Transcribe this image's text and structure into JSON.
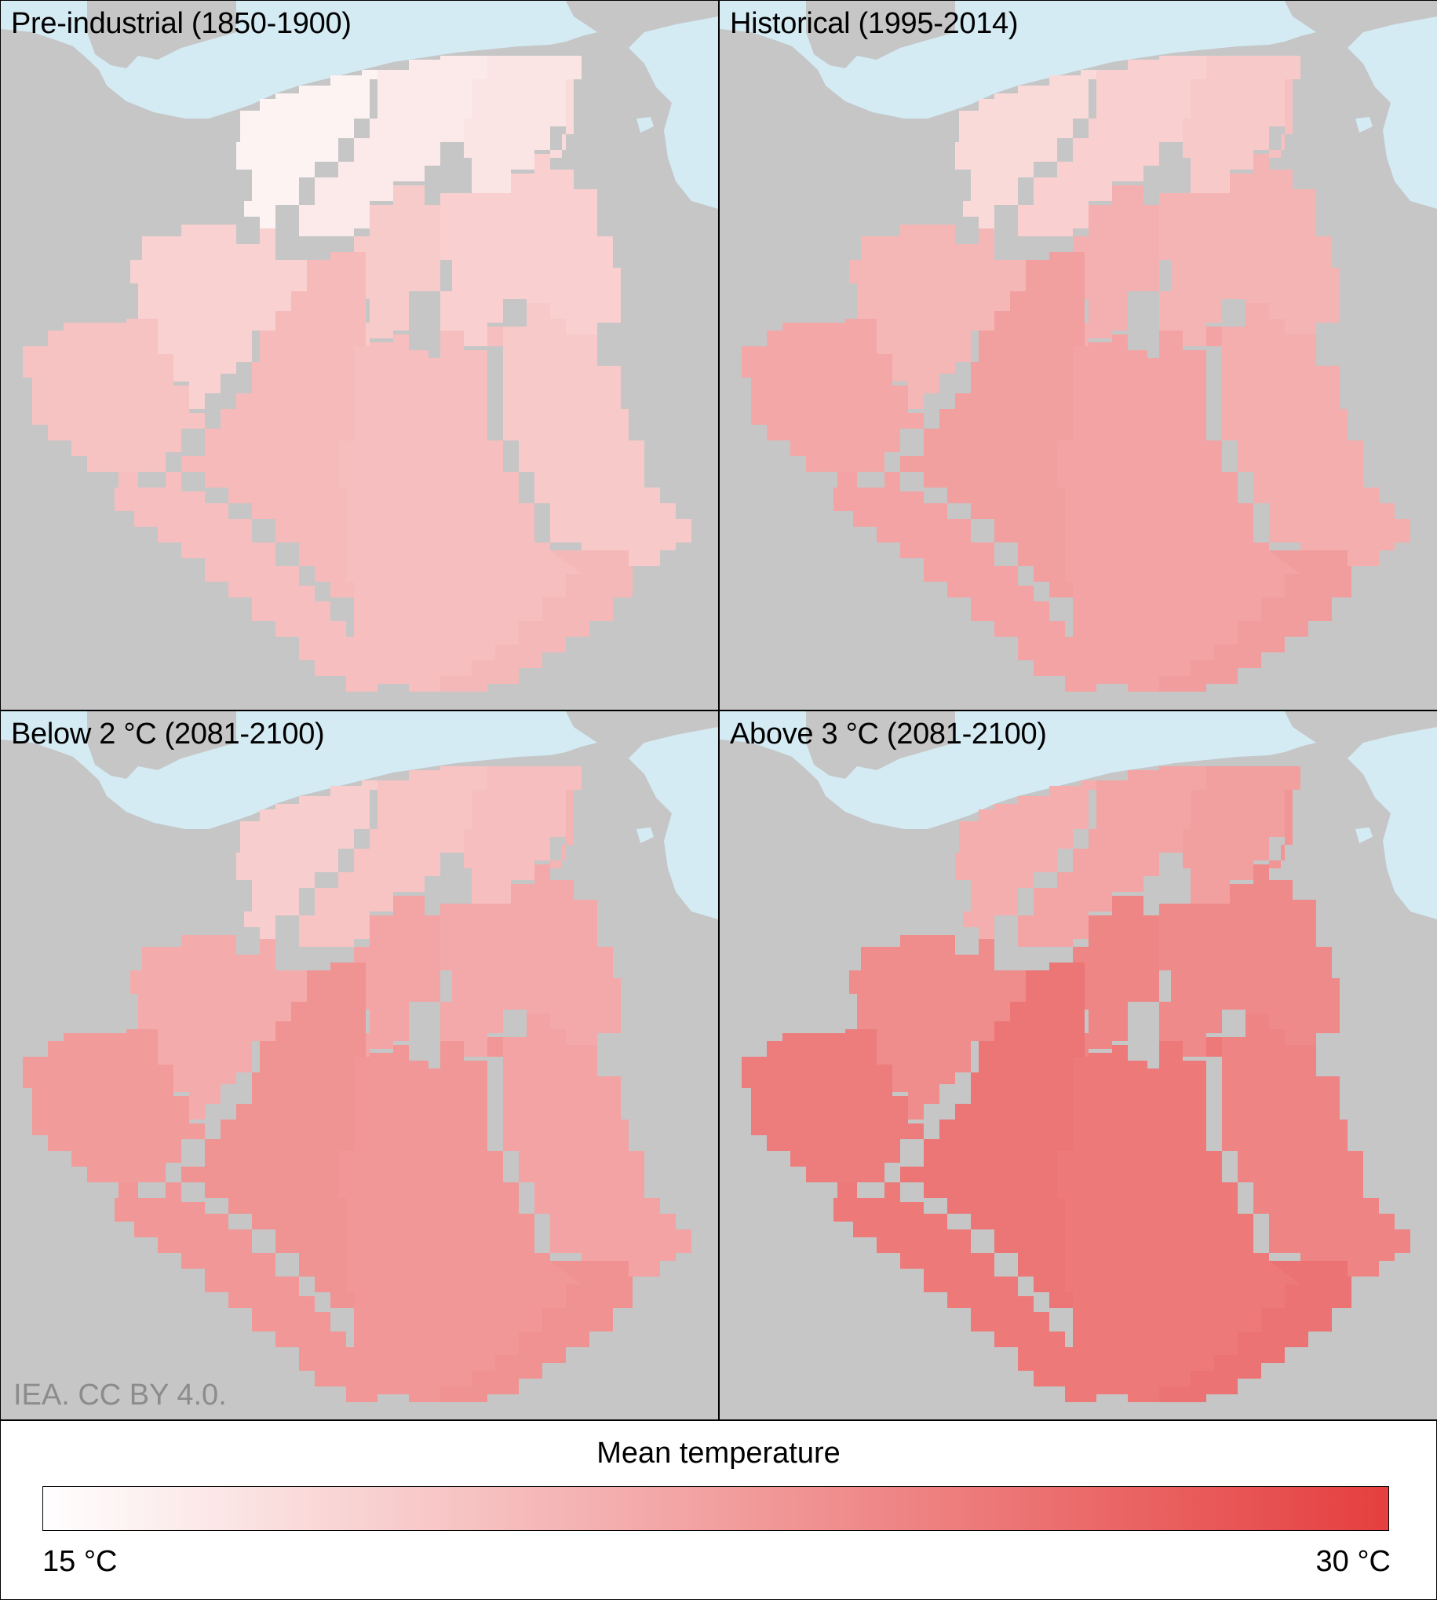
{
  "panels": [
    {
      "title": "Pre-industrial (1850-1900)",
      "mean_level": 0.22
    },
    {
      "title": "Historical (1995-2014)",
      "mean_level": 0.36
    },
    {
      "title": "Below 2 °C (2081-2100)",
      "mean_level": 0.42
    },
    {
      "title": "Above 3 °C (2081-2100)",
      "mean_level": 0.58
    }
  ],
  "credit": "IEA. CC BY 4.0.",
  "legend": {
    "title": "Mean temperature",
    "min_label": "15 °C",
    "max_label": "30 °C",
    "min_color": "#ffffff",
    "max_color": "#e53f3f"
  },
  "colors": {
    "sea": "#d4ebf4",
    "land": "#c6c6c6"
  }
}
